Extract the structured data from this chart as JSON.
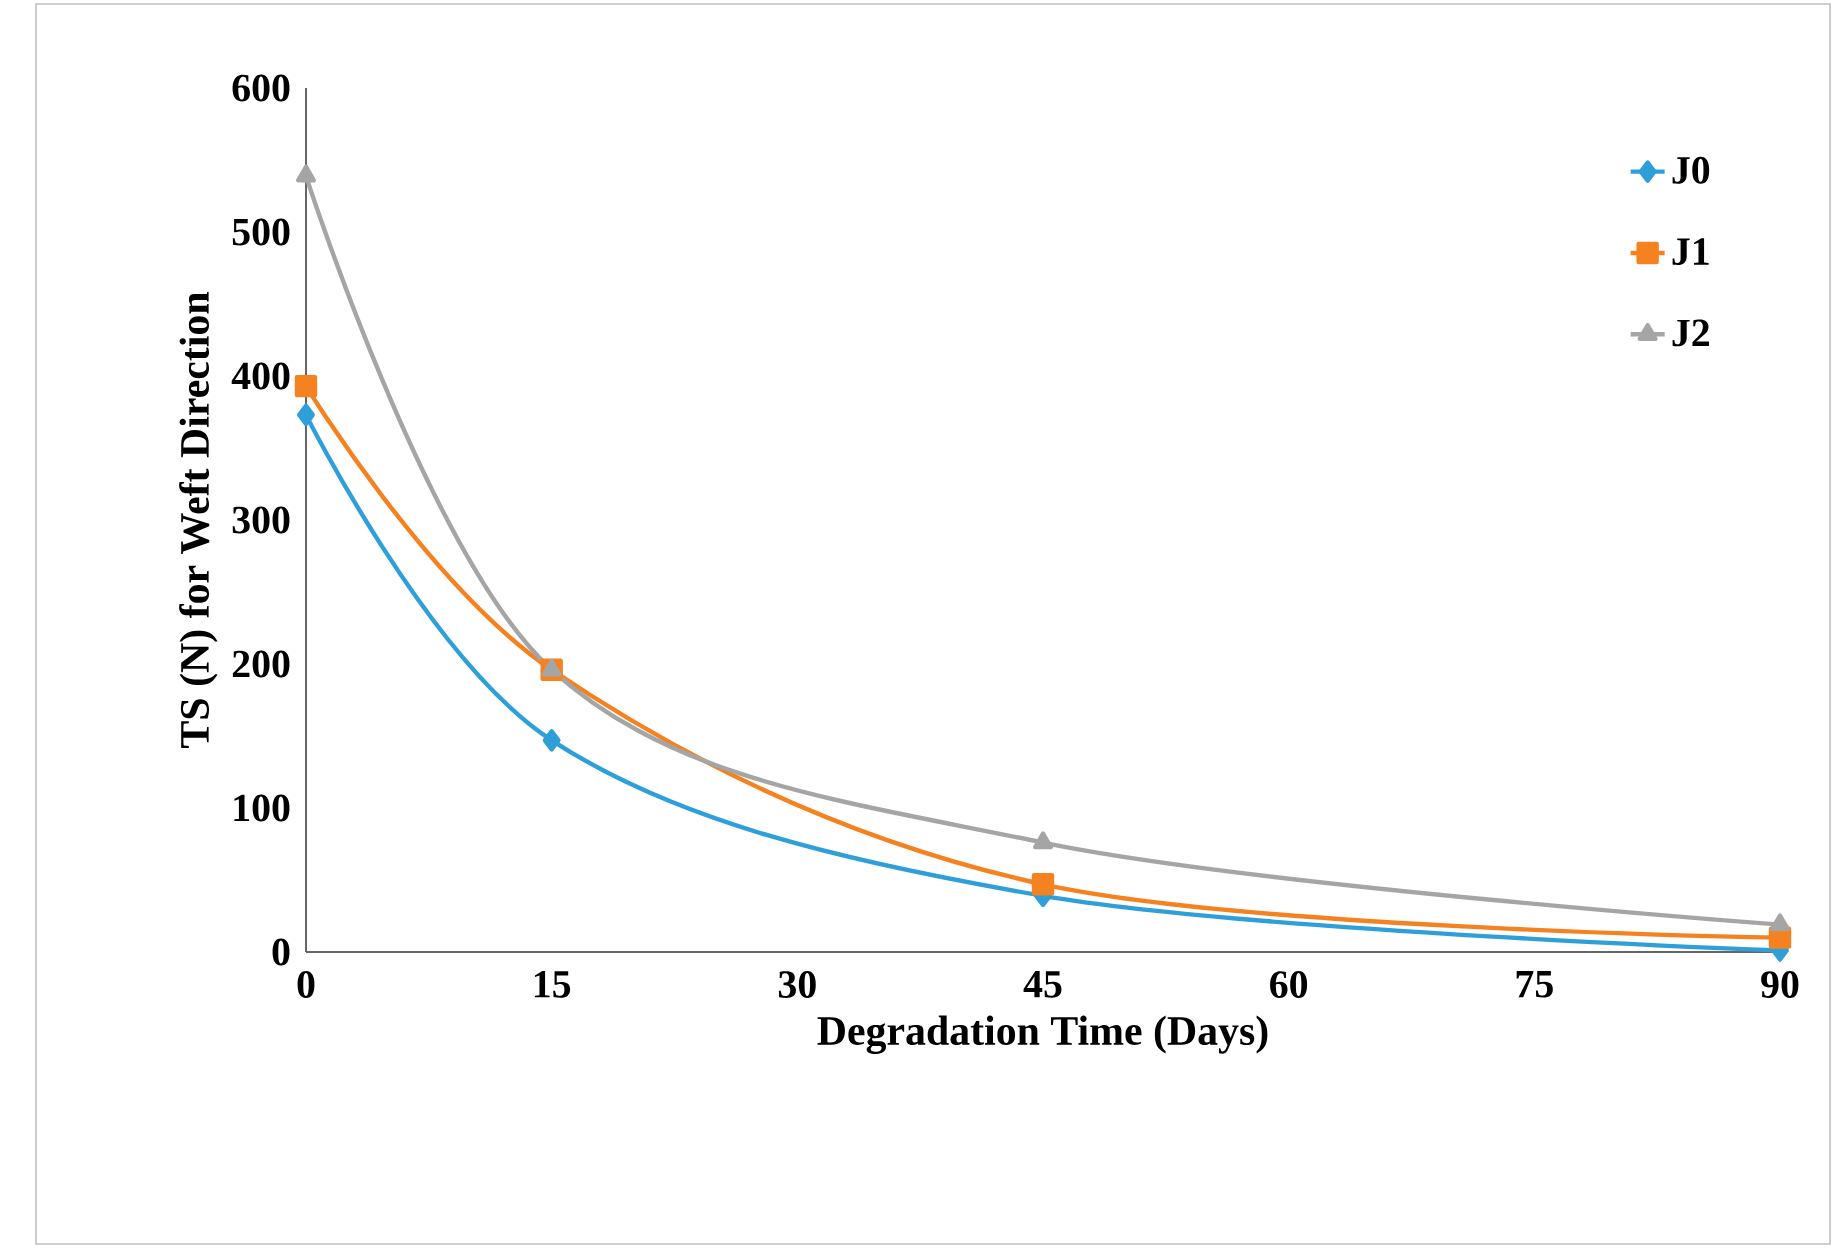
{
  "chart_data": {
    "type": "line",
    "xlabel": "Degradation Time (Days)",
    "ylabel": "TS (N) for Weft Direction",
    "x": [
      0,
      15,
      45,
      90
    ],
    "series": [
      {
        "name": "J0",
        "color": "#2e9fd8",
        "marker": "diamond",
        "values": [
          373,
          147,
          39,
          1
        ]
      },
      {
        "name": "J1",
        "color": "#f58220",
        "marker": "square",
        "values": [
          393,
          196,
          47,
          10
        ]
      },
      {
        "name": "J2",
        "color": "#a5a5a5",
        "marker": "triangle",
        "values": [
          539,
          196,
          76,
          19
        ]
      }
    ],
    "xlim": [
      0,
      90
    ],
    "xticks": [
      0,
      15,
      30,
      45,
      60,
      75,
      90
    ],
    "ylim": [
      0,
      600
    ],
    "yticks": [
      0,
      100,
      200,
      300,
      400,
      500,
      600
    ],
    "grid": false,
    "legend": "top right",
    "line_style": "solid"
  }
}
